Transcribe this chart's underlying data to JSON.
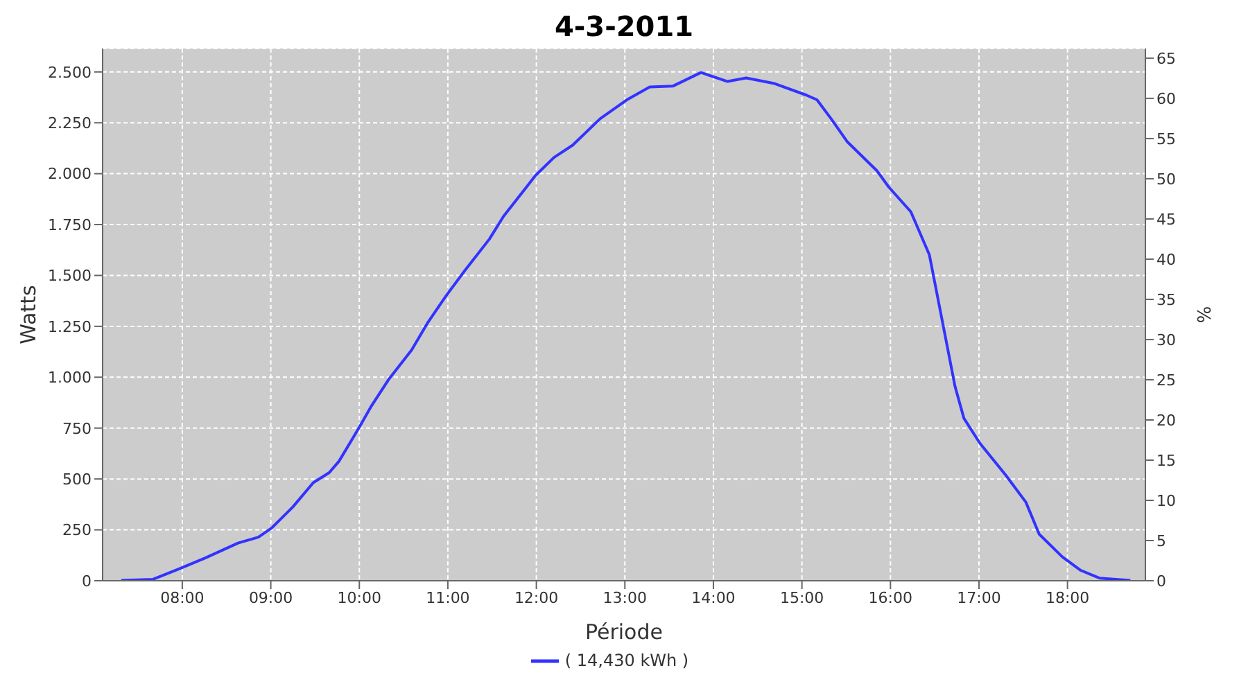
{
  "chart_data": {
    "type": "line",
    "title": "4-3-2011",
    "xlabel": "Période",
    "ylabel": "Watts",
    "y2label": "%",
    "x": [
      7.31,
      7.67,
      7.95,
      8.26,
      8.63,
      8.86,
      9.01,
      9.25,
      9.48,
      9.66,
      9.77,
      10.0,
      10.13,
      10.33,
      10.59,
      10.77,
      10.98,
      11.19,
      11.47,
      11.63,
      11.99,
      12.2,
      12.41,
      12.72,
      13.03,
      13.28,
      13.54,
      13.86,
      14.16,
      14.37,
      14.68,
      15.05,
      15.17,
      15.33,
      15.51,
      15.85,
      15.98,
      16.23,
      16.44,
      16.6,
      16.73,
      16.83,
      17.01,
      17.3,
      17.53,
      17.68,
      17.94,
      18.15,
      18.36,
      18.71
    ],
    "series": [
      {
        "name": "( 14,430 kWh )",
        "color": "#3333ff",
        "values": [
          2,
          7,
          56,
          112,
          185,
          214,
          259,
          363,
          482,
          531,
          587,
          754,
          854,
          988,
          1133,
          1266,
          1400,
          1523,
          1679,
          1791,
          1991,
          2080,
          2140,
          2270,
          2365,
          2426,
          2430,
          2497,
          2453,
          2470,
          2444,
          2386,
          2363,
          2270,
          2158,
          2013,
          1935,
          1813,
          1601,
          1244,
          954,
          798,
          676,
          520,
          386,
          229,
          118,
          51,
          13,
          2
        ]
      }
    ],
    "xlim": [
      7.1,
      18.88
    ],
    "xticks": [
      {
        "value": 8,
        "label": "08:00"
      },
      {
        "value": 9,
        "label": "09:00"
      },
      {
        "value": 10,
        "label": "10:00"
      },
      {
        "value": 11,
        "label": "11:00"
      },
      {
        "value": 12,
        "label": "12:00"
      },
      {
        "value": 13,
        "label": "13:00"
      },
      {
        "value": 14,
        "label": "14:00"
      },
      {
        "value": 15,
        "label": "15:00"
      },
      {
        "value": 16,
        "label": "16:00"
      },
      {
        "value": 17,
        "label": "17:00"
      },
      {
        "value": 18,
        "label": "18:00"
      }
    ],
    "ylim": [
      0,
      2615
    ],
    "yticks": [
      0,
      250,
      500,
      750,
      {
        "value": 1000,
        "label": "1.000"
      },
      {
        "value": 1250,
        "label": "1.250"
      },
      {
        "value": 1500,
        "label": "1.500"
      },
      {
        "value": 1750,
        "label": "1.750"
      },
      {
        "value": 2000,
        "label": "2.000"
      },
      {
        "value": 2250,
        "label": "2.250"
      },
      {
        "value": 2500,
        "label": "2.500"
      }
    ],
    "y2lim": [
      0,
      66.2
    ],
    "y2ticks": [
      0,
      5,
      10,
      15,
      20,
      25,
      30,
      35,
      40,
      45,
      50,
      55,
      60,
      65
    ],
    "grid": true,
    "legend": "bottom",
    "marker": "none",
    "line_style": "solid"
  }
}
